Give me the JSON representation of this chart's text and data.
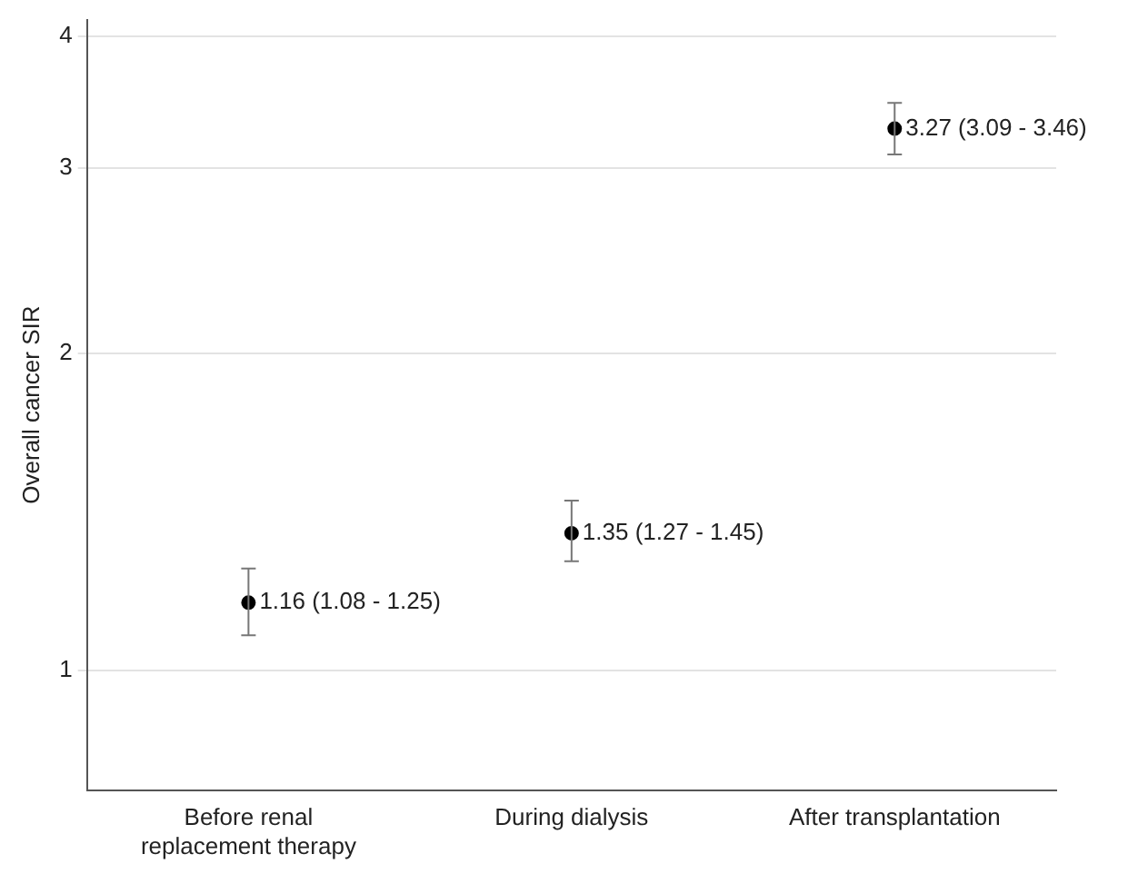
{
  "chart_data": {
    "type": "scatter",
    "ylabel": "Overall cancer SIR",
    "categories": [
      "Before renal replacement therapy",
      "During dialysis",
      "After transplantation"
    ],
    "values": [
      1.16,
      1.35,
      3.27
    ],
    "color": "#000000",
    "errors": [
      [
        1.08,
        1.25
      ],
      [
        1.27,
        1.45
      ],
      [
        3.09,
        3.46
      ]
    ],
    "value_labels": [
      "1.16 (1.08 - 1.25)",
      "1.35 (1.27 - 1.45)",
      "3.27 (3.09 - 3.46)"
    ],
    "log": "y",
    "ylim": [
      0.77,
      4.15
    ],
    "yticks": [
      1,
      2,
      3,
      4
    ],
    "grid": "y",
    "marker": "circle",
    "legend": false
  }
}
